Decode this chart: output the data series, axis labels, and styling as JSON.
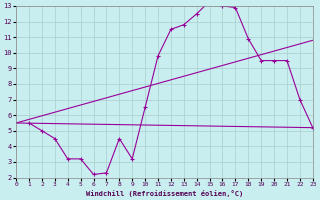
{
  "xlabel": "Windchill (Refroidissement éolien,°C)",
  "background_color": "#c8eef0",
  "grid_color": "#aacccc",
  "line_color": "#990099",
  "xlim": [
    0,
    23
  ],
  "ylim": [
    2,
    13
  ],
  "xticks": [
    0,
    1,
    2,
    3,
    4,
    5,
    6,
    7,
    8,
    9,
    10,
    11,
    12,
    13,
    14,
    15,
    16,
    17,
    18,
    19,
    20,
    21,
    22,
    23
  ],
  "yticks": [
    2,
    3,
    4,
    5,
    6,
    7,
    8,
    9,
    10,
    11,
    12,
    13
  ],
  "line1_x": [
    1,
    2,
    3,
    4,
    5,
    6,
    7,
    8,
    9,
    10,
    11,
    12,
    13,
    14,
    15,
    16,
    17,
    18,
    19,
    20,
    21,
    22,
    23
  ],
  "line1_y": [
    5.5,
    5.0,
    4.5,
    3.2,
    3.2,
    2.2,
    2.3,
    4.5,
    3.2,
    6.5,
    9.8,
    11.5,
    11.8,
    12.5,
    13.3,
    13.0,
    12.9,
    10.9,
    9.5,
    9.5,
    9.5,
    7.0,
    5.2
  ],
  "line2_x": [
    0,
    23
  ],
  "line2_y": [
    5.5,
    5.2
  ],
  "line3_x": [
    0,
    23
  ],
  "line3_y": [
    5.5,
    10.8
  ]
}
